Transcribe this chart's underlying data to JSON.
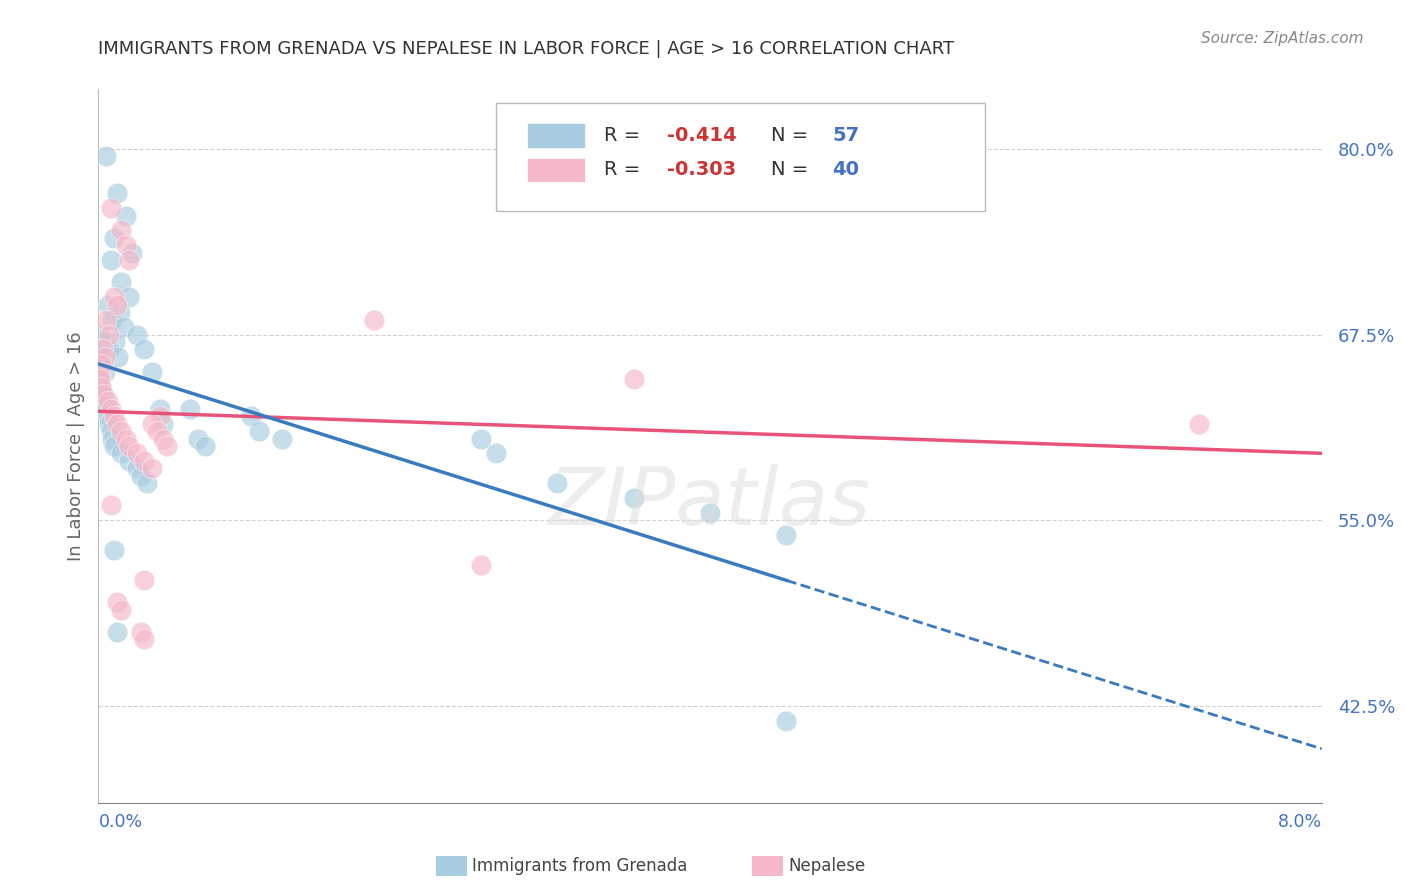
{
  "title": "IMMIGRANTS FROM GRENADA VS NEPALESE IN LABOR FORCE | AGE > 16 CORRELATION CHART",
  "source": "Source: ZipAtlas.com",
  "ylabel": "In Labor Force | Age > 16",
  "ytick_vals": [
    42.5,
    55.0,
    67.5,
    80.0
  ],
  "ytick_labels": [
    "42.5%",
    "55.0%",
    "67.5%",
    "80.0%"
  ],
  "xlim": [
    0.0,
    8.0
  ],
  "ylim": [
    36.0,
    84.0
  ],
  "blue_R": "-0.414",
  "blue_N": "57",
  "pink_R": "-0.303",
  "pink_N": "40",
  "blue_color": "#a8cce0",
  "pink_color": "#f5b8c8",
  "blue_line_color": "#3a7abf",
  "pink_line_color": "#e8537a",
  "blue_scatter": [
    [
      0.05,
      79.5
    ],
    [
      0.12,
      77.0
    ],
    [
      0.18,
      75.5
    ],
    [
      0.1,
      74.0
    ],
    [
      0.08,
      72.5
    ],
    [
      0.15,
      71.0
    ],
    [
      0.22,
      73.0
    ],
    [
      0.2,
      70.0
    ],
    [
      0.06,
      69.5
    ],
    [
      0.14,
      69.0
    ],
    [
      0.09,
      68.5
    ],
    [
      0.17,
      68.0
    ],
    [
      0.25,
      67.5
    ],
    [
      0.11,
      67.0
    ],
    [
      0.07,
      66.5
    ],
    [
      0.13,
      66.0
    ],
    [
      0.3,
      66.5
    ],
    [
      0.35,
      65.0
    ],
    [
      0.03,
      65.5
    ],
    [
      0.04,
      65.0
    ],
    [
      0.02,
      67.0
    ],
    [
      0.02,
      66.0
    ],
    [
      0.01,
      67.5
    ],
    [
      0.01,
      66.5
    ],
    [
      0.01,
      65.5
    ],
    [
      0.01,
      64.5
    ],
    [
      0.02,
      64.0
    ],
    [
      0.03,
      63.5
    ],
    [
      0.04,
      63.0
    ],
    [
      0.05,
      62.5
    ],
    [
      0.06,
      62.0
    ],
    [
      0.07,
      61.5
    ],
    [
      0.08,
      61.0
    ],
    [
      0.09,
      60.5
    ],
    [
      0.1,
      60.0
    ],
    [
      0.15,
      59.5
    ],
    [
      0.2,
      59.0
    ],
    [
      0.25,
      58.5
    ],
    [
      0.28,
      58.0
    ],
    [
      0.32,
      57.5
    ],
    [
      0.4,
      62.5
    ],
    [
      0.42,
      61.5
    ],
    [
      0.6,
      62.5
    ],
    [
      0.65,
      60.5
    ],
    [
      0.7,
      60.0
    ],
    [
      1.0,
      62.0
    ],
    [
      1.05,
      61.0
    ],
    [
      1.2,
      60.5
    ],
    [
      2.5,
      60.5
    ],
    [
      2.6,
      59.5
    ],
    [
      3.0,
      57.5
    ],
    [
      3.5,
      56.5
    ],
    [
      4.0,
      55.5
    ],
    [
      4.5,
      54.0
    ],
    [
      0.1,
      53.0
    ],
    [
      0.12,
      47.5
    ],
    [
      4.5,
      41.5
    ]
  ],
  "pink_scatter": [
    [
      0.08,
      76.0
    ],
    [
      0.15,
      74.5
    ],
    [
      0.18,
      73.5
    ],
    [
      0.2,
      72.5
    ],
    [
      0.1,
      70.0
    ],
    [
      0.12,
      69.5
    ],
    [
      0.05,
      68.5
    ],
    [
      0.07,
      67.5
    ],
    [
      0.03,
      66.5
    ],
    [
      0.04,
      66.0
    ],
    [
      0.02,
      65.5
    ],
    [
      0.01,
      65.0
    ],
    [
      0.01,
      64.5
    ],
    [
      0.02,
      64.0
    ],
    [
      0.03,
      63.5
    ],
    [
      0.06,
      63.0
    ],
    [
      0.08,
      62.5
    ],
    [
      0.1,
      62.0
    ],
    [
      0.12,
      61.5
    ],
    [
      0.15,
      61.0
    ],
    [
      0.18,
      60.5
    ],
    [
      0.2,
      60.0
    ],
    [
      0.25,
      59.5
    ],
    [
      0.3,
      59.0
    ],
    [
      0.35,
      58.5
    ],
    [
      0.4,
      62.0
    ],
    [
      0.08,
      56.0
    ],
    [
      0.12,
      49.5
    ],
    [
      0.15,
      49.0
    ],
    [
      1.8,
      68.5
    ],
    [
      3.5,
      64.5
    ],
    [
      7.2,
      61.5
    ],
    [
      0.3,
      51.0
    ],
    [
      2.5,
      52.0
    ],
    [
      0.28,
      47.5
    ],
    [
      0.3,
      47.0
    ],
    [
      0.35,
      61.5
    ],
    [
      0.38,
      61.0
    ],
    [
      0.42,
      60.5
    ],
    [
      0.45,
      60.0
    ]
  ],
  "watermark": "ZIPatlas",
  "background_color": "#ffffff",
  "grid_color": "#cccccc",
  "title_color": "#333333",
  "axis_tick_color": "#4472c4",
  "source_color": "#888888",
  "legend_r_color": "#cc3333",
  "legend_n_color": "#4472c4",
  "legend_label_color": "#333333"
}
